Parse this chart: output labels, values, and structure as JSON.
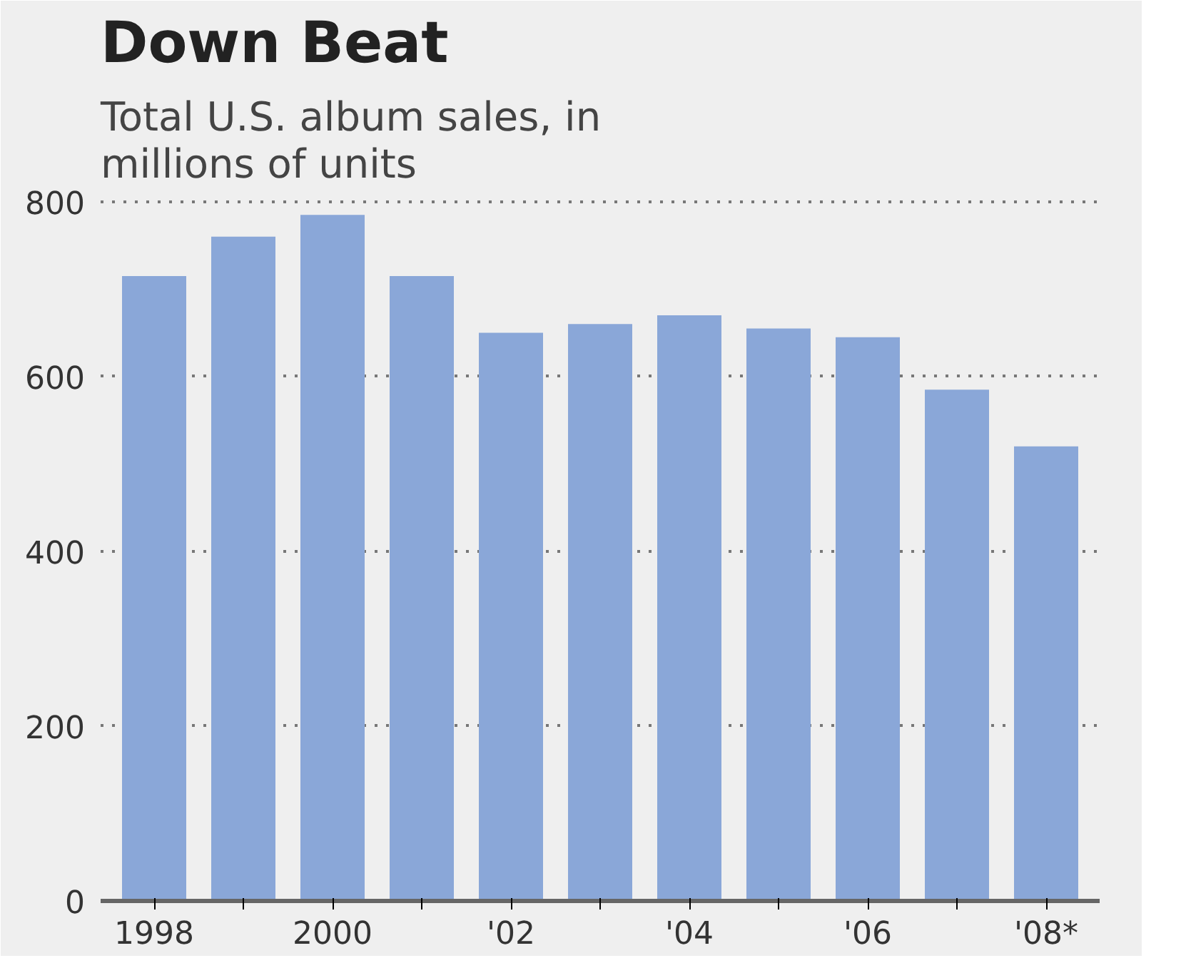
{
  "chart_data": {
    "type": "bar",
    "title": "Down Beat",
    "subtitle": "Total U.S. album sales, in millions of units",
    "categories": [
      "1998",
      null,
      "2000",
      null,
      "'02",
      null,
      "'04",
      null,
      "'06",
      null,
      "'08*"
    ],
    "values": [
      715,
      760,
      785,
      715,
      650,
      660,
      670,
      655,
      645,
      585,
      520
    ],
    "color": "#8aa7d8",
    "ylim": [
      0,
      800
    ],
    "yticks": [
      0,
      200,
      400,
      600,
      800
    ],
    "grid": "y"
  }
}
